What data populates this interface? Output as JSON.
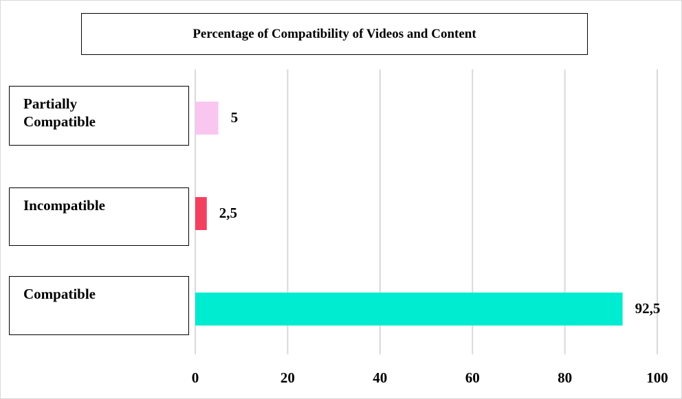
{
  "chart_data": {
    "type": "bar",
    "orientation": "horizontal",
    "title": "Percentage of Compatibility of Videos and Content",
    "categories": [
      "Partially Compatible",
      "Incompatible",
      "Compatible"
    ],
    "values": [
      5,
      2.5,
      92.5
    ],
    "value_labels": [
      "5",
      "2,5",
      "92,5"
    ],
    "colors": [
      "#f9c6f0",
      "#f2405f",
      "#00ecd0"
    ],
    "xlim": [
      0,
      100
    ],
    "xticks": [
      0,
      20,
      40,
      60,
      80,
      100
    ],
    "grid": true
  }
}
